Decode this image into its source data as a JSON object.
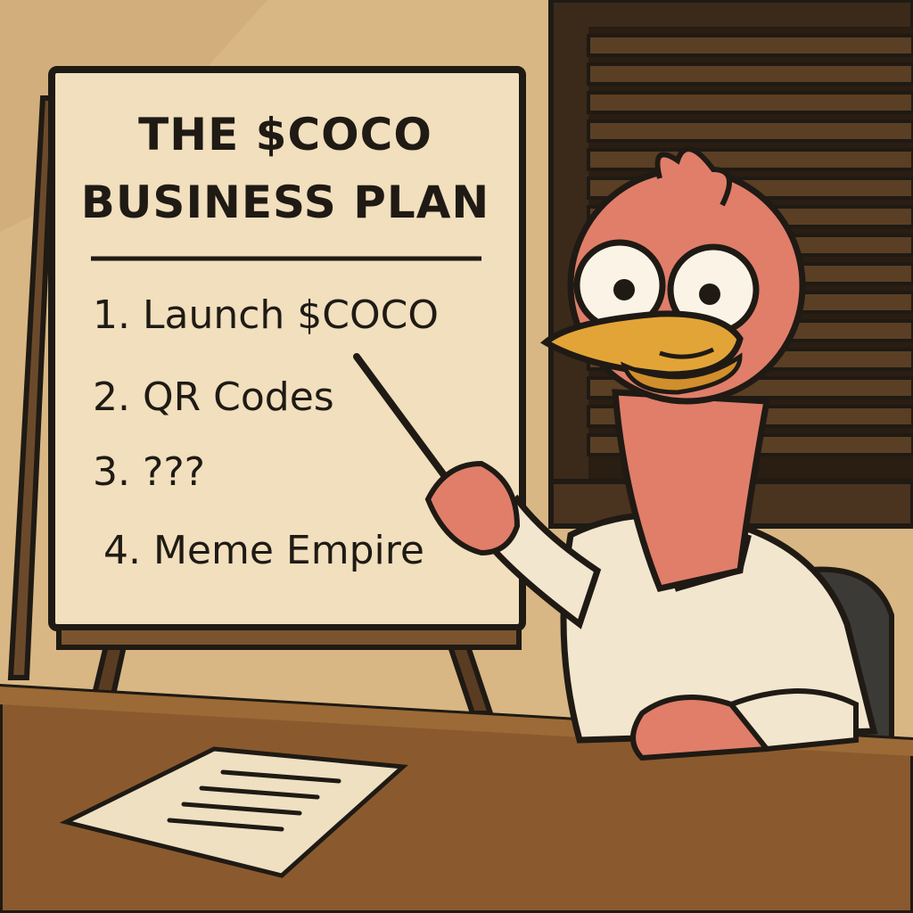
{
  "board": {
    "title_line_1": "THE $COCO",
    "title_line_2": "BUSINESS PLAN",
    "items": [
      "1. Launch $COCO",
      "2. QR Codes",
      "3. ???",
      "4. Meme Empire"
    ]
  },
  "palette": {
    "wall": "#d9b98a",
    "board": "#f1dfbd",
    "desk": "#8a5a2e",
    "skin": "#e07e6a",
    "beak": "#e3a437",
    "shirt": "#f3e6cf",
    "outline": "#1f1a14"
  }
}
